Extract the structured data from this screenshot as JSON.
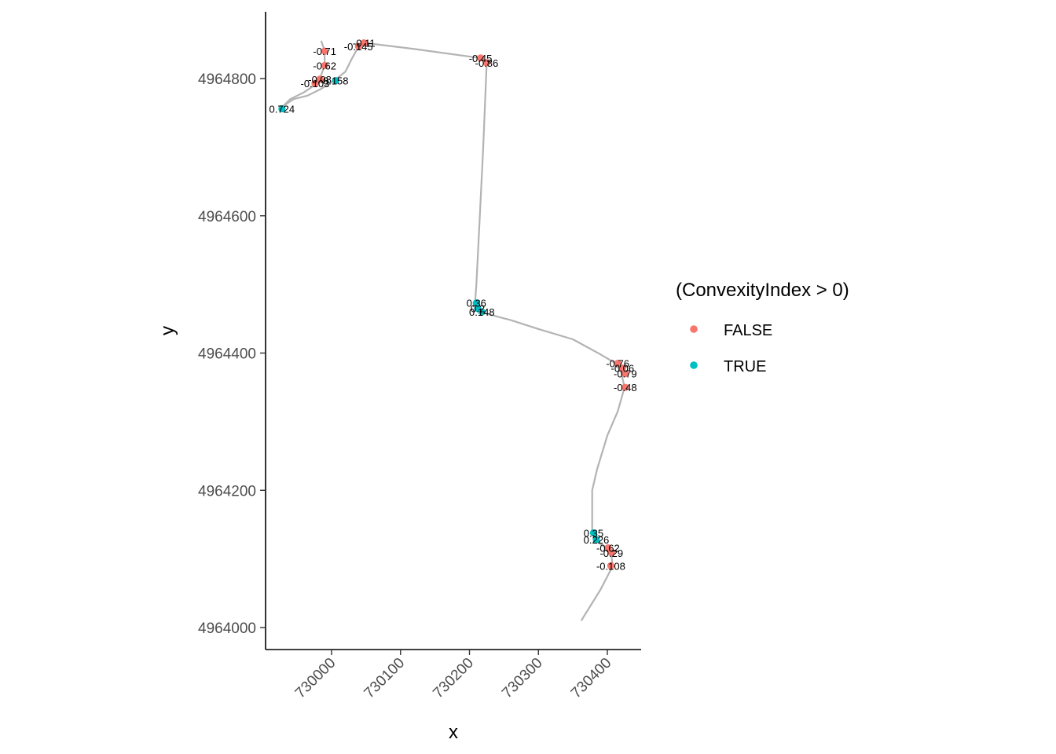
{
  "chart_data": {
    "type": "scatter",
    "xlabel": "x",
    "ylabel": "y",
    "xlim": [
      729920,
      730450
    ],
    "ylim": [
      4963970,
      4964960
    ],
    "x_ticks": [
      730000,
      730100,
      730200,
      730300,
      730400
    ],
    "x_tick_labels": [
      "730000",
      "730100",
      "730200",
      "730300",
      "730400"
    ],
    "y_ticks": [
      4964000,
      4964200,
      4964400,
      4964600,
      4964800
    ],
    "y_tick_labels": [
      "4964000",
      "4964200",
      "4964400",
      "4964600",
      "4964800"
    ],
    "grid": false,
    "path_color": "#b3b3b3",
    "path": [
      [
        729985,
        4964855
      ],
      [
        729990,
        4964840
      ],
      [
        729990,
        4964820
      ],
      [
        729985,
        4964805
      ],
      [
        729975,
        4964790
      ],
      [
        729960,
        4964780
      ],
      [
        729940,
        4964770
      ],
      [
        729930,
        4964760
      ],
      [
        729945,
        4964770
      ],
      [
        729965,
        4964775
      ],
      [
        729985,
        4964785
      ],
      [
        730005,
        4964798
      ],
      [
        730020,
        4964810
      ],
      [
        730030,
        4964830
      ],
      [
        730040,
        4964848
      ],
      [
        730048,
        4964852
      ],
      [
        730120,
        4964843
      ],
      [
        730215,
        4964830
      ],
      [
        730225,
        4964822
      ],
      [
        730220,
        4964700
      ],
      [
        730215,
        4964600
      ],
      [
        730210,
        4964500
      ],
      [
        730208,
        4964472
      ],
      [
        730215,
        4964460
      ],
      [
        730230,
        4964456
      ],
      [
        730260,
        4964448
      ],
      [
        730300,
        4964435
      ],
      [
        730350,
        4964420
      ],
      [
        730390,
        4964398
      ],
      [
        730412,
        4964385
      ],
      [
        730420,
        4964372
      ],
      [
        730425,
        4964350
      ],
      [
        730415,
        4964315
      ],
      [
        730400,
        4964280
      ],
      [
        730385,
        4964230
      ],
      [
        730378,
        4964200
      ],
      [
        730378,
        4964180
      ],
      [
        730378,
        4964140
      ],
      [
        730382,
        4964128
      ],
      [
        730395,
        4964118
      ],
      [
        730405,
        4964110
      ],
      [
        730408,
        4964090
      ],
      [
        730390,
        4964055
      ],
      [
        730362,
        4964010
      ]
    ],
    "legend": {
      "title": "(ConvexityIndex > 0)",
      "position": "right",
      "entries": [
        {
          "label": "FALSE",
          "color": "#F8766D"
        },
        {
          "label": "TRUE",
          "color": "#00BFC4"
        }
      ]
    },
    "points": [
      {
        "x": 729990,
        "y": 4964840,
        "label": "-0.71",
        "convex": false
      },
      {
        "x": 729990,
        "y": 4964819,
        "label": "-0.62",
        "convex": false
      },
      {
        "x": 729983,
        "y": 4964799,
        "label": "-0.08",
        "convex": false
      },
      {
        "x": 729976,
        "y": 4964793,
        "label": "-0.103",
        "convex": false
      },
      {
        "x": 730006,
        "y": 4964797,
        "label": "0.158",
        "convex": true
      },
      {
        "x": 729928,
        "y": 4964756,
        "label": "0.724",
        "convex": true
      },
      {
        "x": 730047,
        "y": 4964852,
        "label": "-0.11",
        "convex": false
      },
      {
        "x": 730039,
        "y": 4964847,
        "label": "-0.145",
        "convex": false
      },
      {
        "x": 730216,
        "y": 4964830,
        "label": "-0.45",
        "convex": false
      },
      {
        "x": 730225,
        "y": 4964823,
        "label": "-0.86",
        "convex": false
      },
      {
        "x": 730210,
        "y": 4964473,
        "label": "0.36",
        "convex": true
      },
      {
        "x": 730212,
        "y": 4964465,
        "label": "0.2",
        "convex": true
      },
      {
        "x": 730218,
        "y": 4964460,
        "label": "0.148",
        "convex": true
      },
      {
        "x": 730415,
        "y": 4964385,
        "label": "-0.76",
        "convex": false
      },
      {
        "x": 730422,
        "y": 4964378,
        "label": "-0.06",
        "convex": false
      },
      {
        "x": 730426,
        "y": 4964370,
        "label": "-0.79",
        "convex": false
      },
      {
        "x": 730426,
        "y": 4964350,
        "label": "-0.48",
        "convex": false
      },
      {
        "x": 730380,
        "y": 4964138,
        "label": "0.35",
        "convex": true
      },
      {
        "x": 730384,
        "y": 4964128,
        "label": "0.226",
        "convex": true
      },
      {
        "x": 730401,
        "y": 4964116,
        "label": "-0.62",
        "convex": false
      },
      {
        "x": 730406,
        "y": 4964109,
        "label": "-0.29",
        "convex": false
      },
      {
        "x": 730405,
        "y": 4964090,
        "label": "-0.108",
        "convex": false
      }
    ]
  }
}
